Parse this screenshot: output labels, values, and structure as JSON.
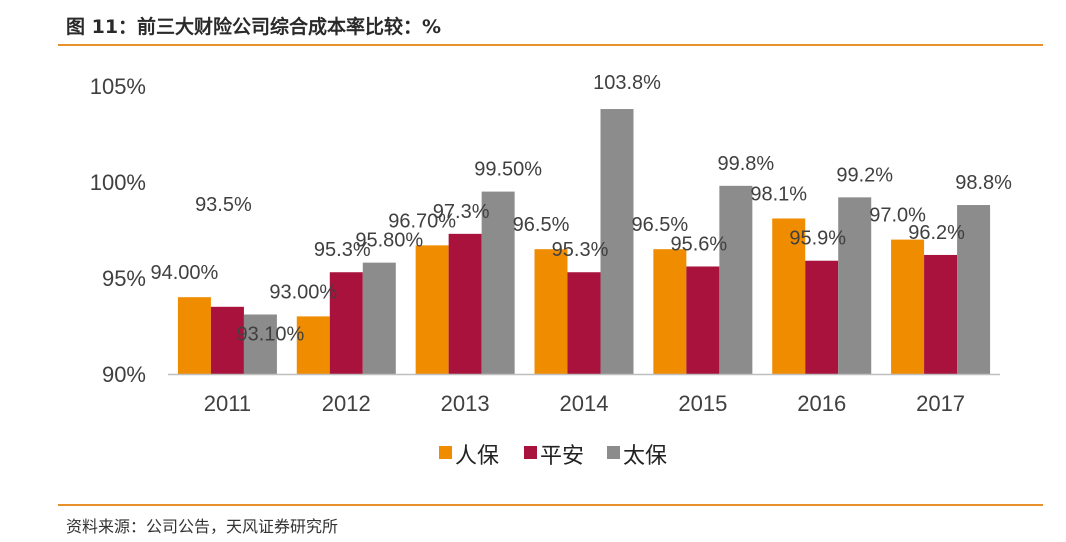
{
  "header": {
    "title": "图 11：前三大财险公司综合成本率比较：%"
  },
  "footer": {
    "source": "资料来源：公司公告，天风证券研究所"
  },
  "colors": {
    "rule": "#e8902a",
    "axis": "#bfbfbf",
    "label": "#404040"
  },
  "chart_data": {
    "type": "bar",
    "title": "",
    "xlabel": "",
    "ylabel": "",
    "ylim": [
      90,
      105
    ],
    "yticks": [
      90,
      95,
      100,
      105
    ],
    "ytick_labels": [
      "90%",
      "95%",
      "100%",
      "105%"
    ],
    "grid": false,
    "legend_position": "bottom",
    "categories": [
      "2011",
      "2012",
      "2013",
      "2014",
      "2015",
      "2016",
      "2017"
    ],
    "series": [
      {
        "name": "人保",
        "color": "#f08c00",
        "values": [
          94.0,
          93.0,
          96.7,
          96.5,
          96.5,
          98.1,
          97.0
        ],
        "labels": [
          "94.00%",
          "93.00%",
          "96.70%",
          "96.5%",
          "96.5%",
          "98.1%",
          "97.0%"
        ]
      },
      {
        "name": "平安",
        "color": "#a8123c",
        "values": [
          93.5,
          95.3,
          97.3,
          95.3,
          95.6,
          95.9,
          96.2
        ],
        "labels": [
          "93.5%",
          "95.3%",
          "97.3%",
          "95.3%",
          "95.6%",
          "95.9%",
          "96.2%"
        ]
      },
      {
        "name": "太保",
        "color": "#8c8c8c",
        "values": [
          93.1,
          95.8,
          99.5,
          103.8,
          99.8,
          99.2,
          98.8
        ],
        "labels": [
          "93.10%",
          "95.80%",
          "99.50%",
          "103.8%",
          "99.8%",
          "99.2%",
          "98.8%"
        ]
      }
    ]
  }
}
